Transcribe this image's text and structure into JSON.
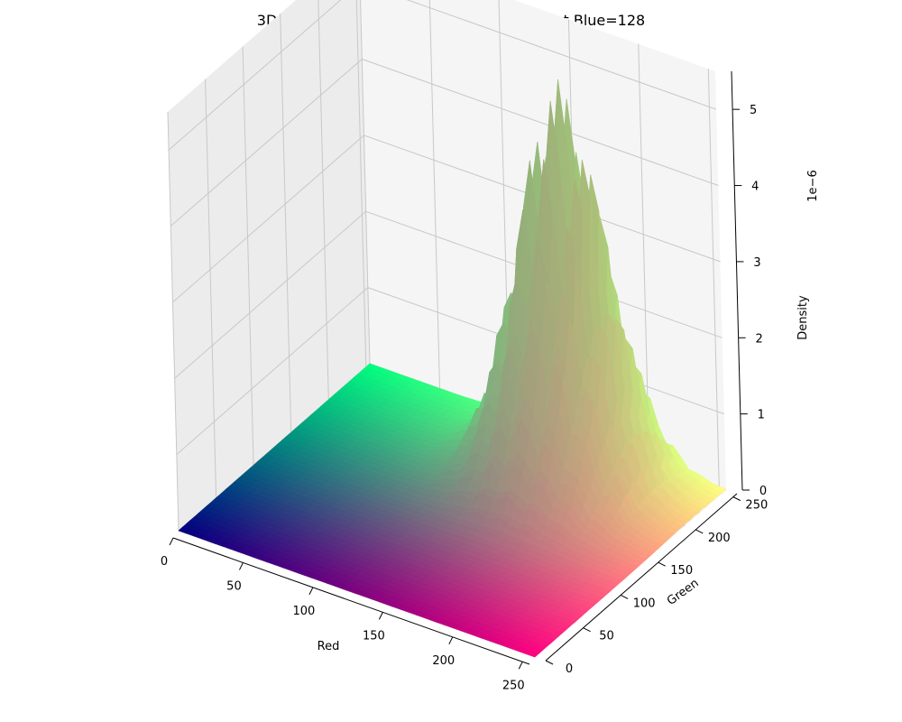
{
  "chart_data": {
    "type": "surface3d",
    "title": "3D Color Density Topography - RGB slice at Blue=128",
    "xlabel": "Red",
    "ylabel": "Green",
    "zlabel": "Density",
    "z_offset_label": "1e−6",
    "xlim": [
      0,
      255
    ],
    "ylim": [
      0,
      255
    ],
    "zlim": [
      0,
      5.5
    ],
    "x_ticks": [
      0,
      50,
      100,
      150,
      200,
      250
    ],
    "y_ticks": [
      0,
      50,
      100,
      150,
      200,
      250
    ],
    "z_ticks": [
      0,
      1,
      2,
      3,
      4,
      5
    ],
    "z_scale": 1e-06,
    "blue_channel": 128,
    "surface_coloring": "rgb(Red, Green, Blue=128)",
    "peak": {
      "red": 165,
      "green": 210,
      "density": 5.2
    },
    "grid": true
  }
}
